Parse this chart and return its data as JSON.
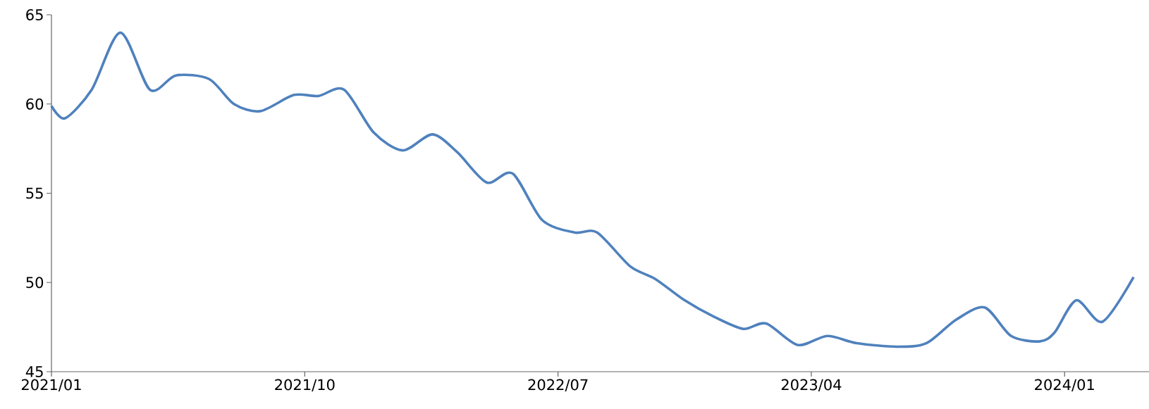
{
  "chart_data": {
    "type": "line",
    "marker": "none",
    "line_style": "solid",
    "grid": false,
    "xlim": [
      "2021-01",
      "2024-04"
    ],
    "xticks": [
      {
        "value": "2021-01",
        "label": "2021/01"
      },
      {
        "value": "2021-10",
        "label": "2021/10"
      },
      {
        "value": "2022-07",
        "label": "2022/07"
      },
      {
        "value": "2023-04",
        "label": "2023/04"
      },
      {
        "value": "2024-01",
        "label": "2024/01"
      }
    ],
    "ylim": [
      45,
      65
    ],
    "yticks": [
      45,
      50,
      55,
      60,
      65
    ],
    "x": [
      "2021-01-01",
      "2021-01-16",
      "2021-02-13",
      "2021-03-15",
      "2021-04-16",
      "2021-05-14",
      "2021-06-19",
      "2021-07-16",
      "2021-08-14",
      "2021-09-19",
      "2021-10-16",
      "2021-11-13",
      "2021-12-15",
      "2022-01-16",
      "2022-02-16",
      "2022-03-14",
      "2022-04-15",
      "2022-05-13",
      "2022-06-14",
      "2022-07-19",
      "2022-08-13",
      "2022-09-18",
      "2022-10-15",
      "2022-11-16",
      "2022-12-17",
      "2023-01-19",
      "2023-02-12",
      "2023-03-17",
      "2023-04-18",
      "2023-05-20",
      "2023-07-03",
      "2023-08-04",
      "2023-09-05",
      "2023-10-06",
      "2023-11-04",
      "2023-12-05",
      "2023-12-21",
      "2024-01-14",
      "2024-02-11",
      "2024-03-15"
    ],
    "series": [
      {
        "color": "#4f81bd",
        "values": [
          59.9,
          59.2,
          60.8,
          64.0,
          60.8,
          61.6,
          61.4,
          60.0,
          59.6,
          60.5,
          60.45,
          60.8,
          58.4,
          57.4,
          58.3,
          57.3,
          55.6,
          56.1,
          53.5,
          52.8,
          52.8,
          50.9,
          50.2,
          49.0,
          48.1,
          47.4,
          47.7,
          46.5,
          47.0,
          46.6,
          46.4,
          46.6,
          47.9,
          48.6,
          47.0,
          46.7,
          47.2,
          49.0,
          47.8,
          50.3
        ]
      }
    ]
  }
}
